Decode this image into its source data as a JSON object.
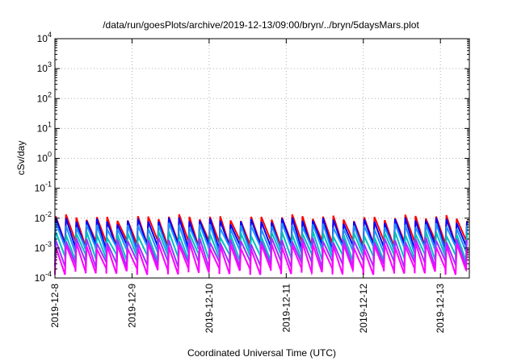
{
  "chart_data": {
    "type": "line",
    "title": "/data/run/goesPlots/archive/2019-12-13/09:00/bryn/../bryn/5daysMars.plot",
    "xlabel": "Coordinated Universal Time (UTC)",
    "ylabel": "cSv/day",
    "x_scale": "time",
    "y_scale": "log",
    "xlim": [
      "2019-12-08 00:00",
      "2019-12-13 09:00"
    ],
    "ylim": [
      0.0001,
      10000
    ],
    "x_ticks": [
      "2019-12-8",
      "2019-12-9",
      "2019-12-10",
      "2019-12-11",
      "2019-12-12",
      "2019-12-13"
    ],
    "y_ticks": [
      {
        "base": "10",
        "exp": "-4"
      },
      {
        "base": "10",
        "exp": "-3"
      },
      {
        "base": "10",
        "exp": "-2"
      },
      {
        "base": "10",
        "exp": "-1"
      },
      {
        "base": "10",
        "exp": "0"
      },
      {
        "base": "10",
        "exp": "1"
      },
      {
        "base": "10",
        "exp": "2"
      },
      {
        "base": "10",
        "exp": "3"
      },
      {
        "base": "10",
        "exp": "4"
      }
    ],
    "grid": true,
    "cycles_per_day": 7.5,
    "series": [
      {
        "color": "#ff0000",
        "peak": 0.0105,
        "trough": 0.0015
      },
      {
        "color": "#0000ff",
        "peak": 0.0085,
        "trough": 0.0011
      },
      {
        "color": "#1e90ff",
        "peak": 0.0055,
        "trough": 0.0009
      },
      {
        "color": "#00bfbf",
        "peak": 0.003,
        "trough": 0.0005
      },
      {
        "color": "#9b30ff",
        "peak": 0.0018,
        "trough": 0.0003
      },
      {
        "color": "#ff00ff",
        "peak": 0.0012,
        "trough": 0.00017
      }
    ]
  }
}
